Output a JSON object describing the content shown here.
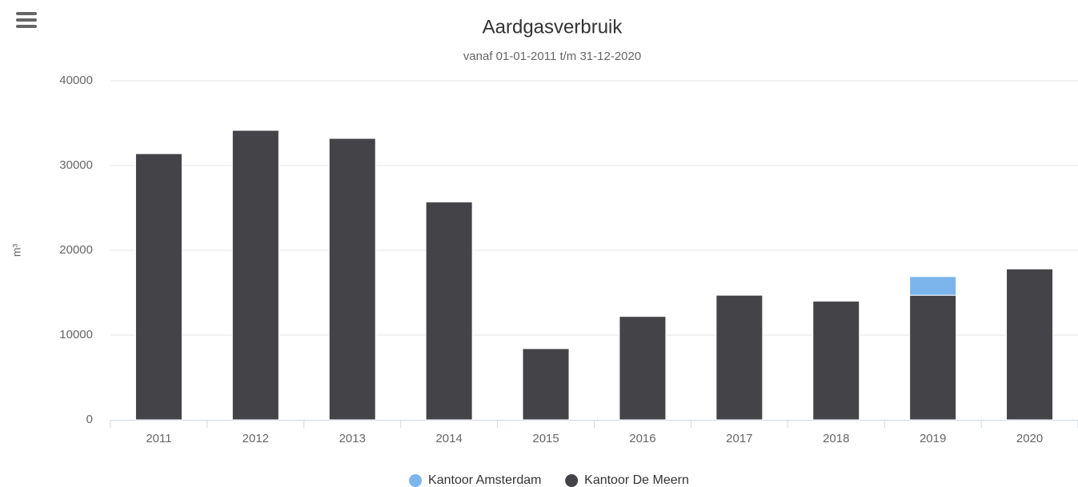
{
  "chart_data": {
    "type": "bar",
    "stacked": true,
    "title": "Aardgasverbruik",
    "subtitle": "vanaf 01-01-2011 t/m 31-12-2020",
    "y_label": "m³",
    "categories": [
      "2011",
      "2012",
      "2013",
      "2014",
      "2015",
      "2016",
      "2017",
      "2018",
      "2019",
      "2020"
    ],
    "series": [
      {
        "name": "Kantoor Amsterdam",
        "color": "#7cb5ec",
        "values": [
          null,
          null,
          null,
          null,
          null,
          null,
          null,
          null,
          2200,
          null
        ]
      },
      {
        "name": "Kantoor De Meern",
        "color": "#434348",
        "values": [
          31400,
          34150,
          33200,
          25700,
          8400,
          12200,
          14700,
          14000,
          14700,
          17800
        ]
      }
    ],
    "ylim": [
      0,
      40000
    ],
    "yticks": [
      0,
      10000,
      20000,
      30000,
      40000
    ],
    "grid": true,
    "legend": "bottom"
  }
}
